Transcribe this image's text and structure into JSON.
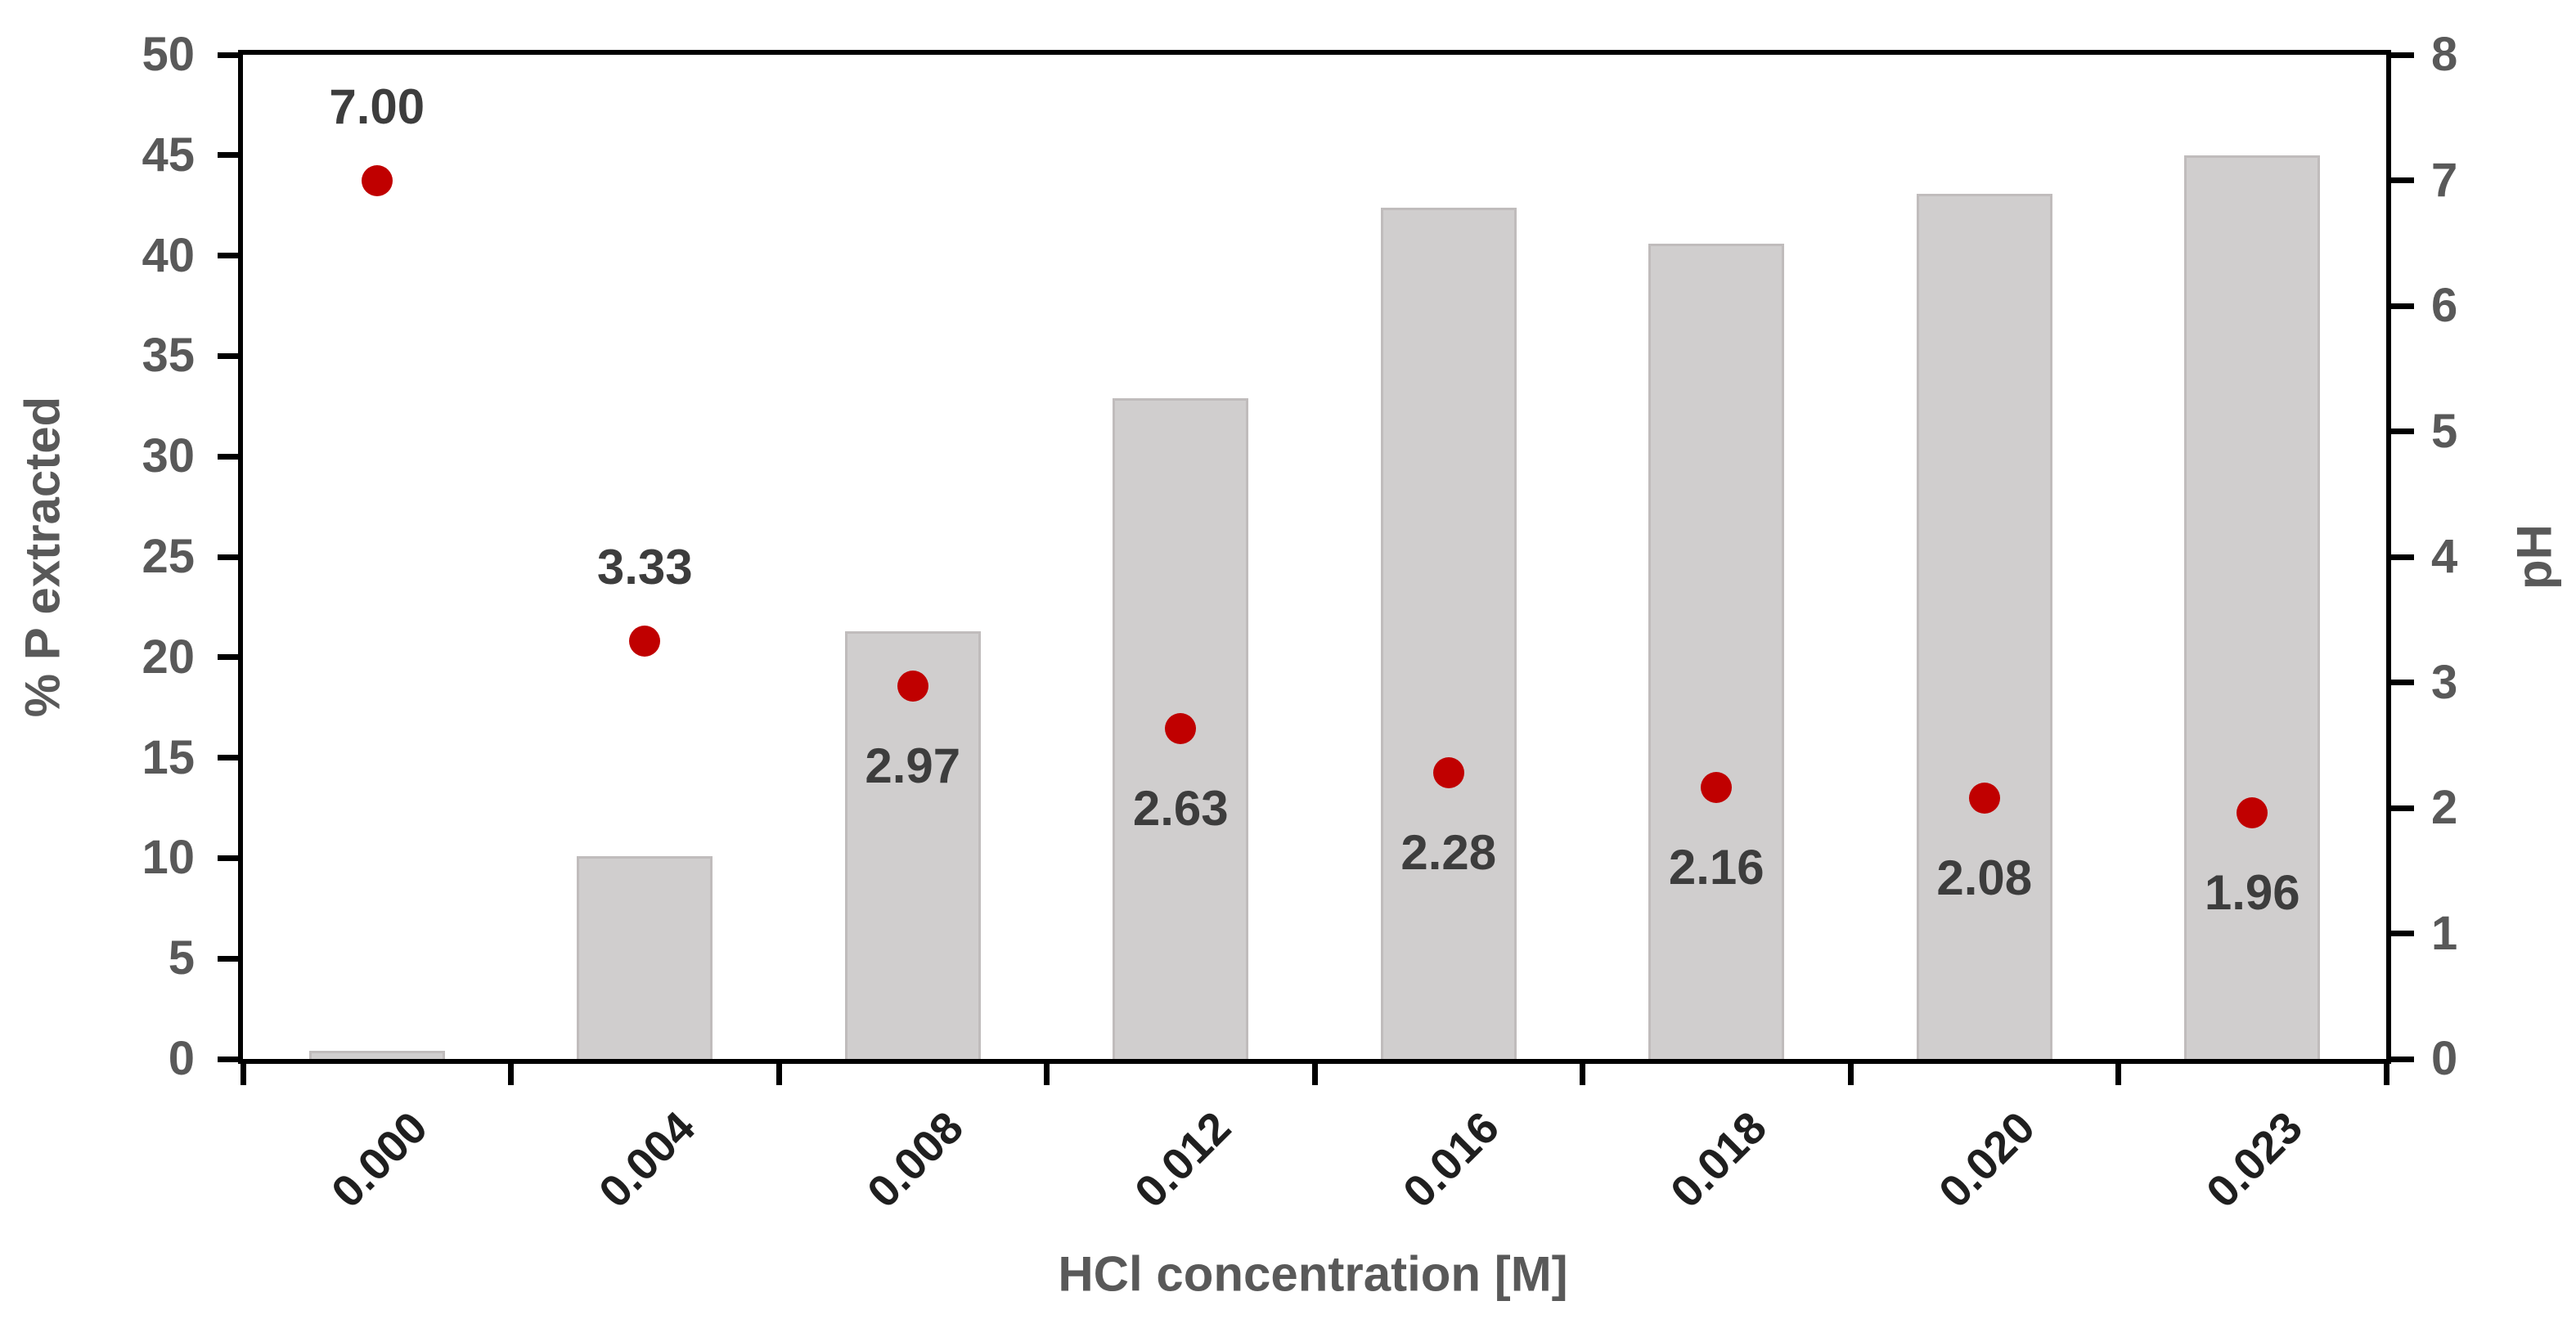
{
  "chart_data": {
    "type": "combo",
    "title": "",
    "xlabel": "HCl concentration [M]",
    "ylabel_left": "% P extracted",
    "ylabel_right": "pH",
    "categories": [
      "0.000",
      "0.004",
      "0.008",
      "0.012",
      "0.016",
      "0.018",
      "0.020",
      "0.023"
    ],
    "series": [
      {
        "name": "% P extracted",
        "type": "bar",
        "axis": "left",
        "values": [
          0.4,
          10.1,
          21.3,
          32.9,
          42.4,
          40.6,
          43.1,
          45.0
        ]
      },
      {
        "name": "pH",
        "type": "scatter",
        "axis": "right",
        "values": [
          7.0,
          3.33,
          2.97,
          2.63,
          2.28,
          2.16,
          2.08,
          1.96
        ],
        "labels": [
          "7.00",
          "3.33",
          "2.97",
          "2.63",
          "2.28",
          "2.16",
          "2.08",
          "1.96"
        ],
        "label_positions": [
          "above",
          "above",
          "below",
          "below",
          "below",
          "below",
          "below",
          "below"
        ]
      }
    ],
    "left_axis": {
      "min": 0,
      "max": 50,
      "step": 5,
      "ticks": [
        "50",
        "45",
        "40",
        "35",
        "30",
        "25",
        "20",
        "15",
        "10",
        "5",
        "0"
      ]
    },
    "right_axis": {
      "min": 0,
      "max": 8,
      "step": 1,
      "ticks": [
        "8",
        "7",
        "6",
        "5",
        "4",
        "3",
        "2",
        "1",
        "0"
      ]
    },
    "legend": "none",
    "grid": "off",
    "colors": {
      "bar_fill": "#d0cece",
      "bar_edge": "#c0bcbc",
      "marker": "#c00000",
      "axis_line": "#000000",
      "y_tick_label": "#595959",
      "x_tick_label": "#1f1f1f",
      "data_label": "#3d3d3d"
    }
  }
}
